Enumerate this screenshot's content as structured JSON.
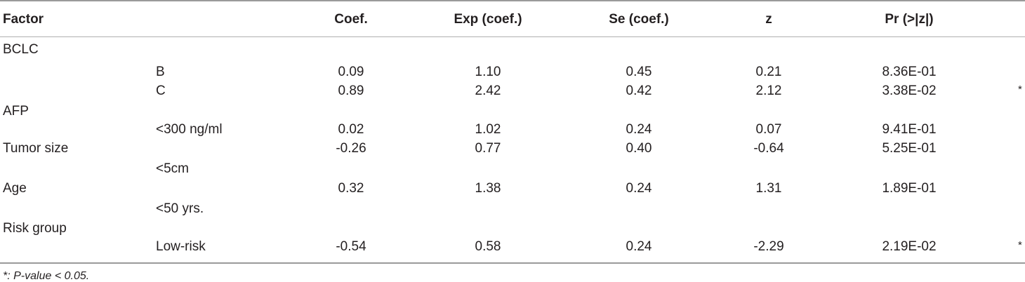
{
  "table": {
    "headers": {
      "factor": "Factor",
      "subfactor": "",
      "coef": "Coef.",
      "exp": "Exp (coef.)",
      "se": "Se (coef.)",
      "z": "z",
      "pr": "Pr (>|z|)"
    },
    "rows": [
      {
        "factor": "BCLC",
        "sub": "",
        "coef": "",
        "exp": "",
        "se": "",
        "z": "",
        "pr": "",
        "sig": ""
      },
      {
        "factor": "",
        "sub": "B",
        "coef": "0.09",
        "exp": "1.10",
        "se": "0.45",
        "z": "0.21",
        "pr": "8.36E-01",
        "sig": ""
      },
      {
        "factor": "",
        "sub": "C",
        "coef": "0.89",
        "exp": "2.42",
        "se": "0.42",
        "z": "2.12",
        "pr": "3.38E-02",
        "sig": "*"
      },
      {
        "factor": "AFP",
        "sub": "",
        "coef": "",
        "exp": "",
        "se": "",
        "z": "",
        "pr": "",
        "sig": ""
      },
      {
        "factor": "",
        "sub": "<300 ng/ml",
        "coef": "0.02",
        "exp": "1.02",
        "se": "0.24",
        "z": "0.07",
        "pr": "9.41E-01",
        "sig": ""
      },
      {
        "factor": "Tumor size",
        "sub": "",
        "coef": "-0.26",
        "exp": "0.77",
        "se": "0.40",
        "z": "-0.64",
        "pr": "5.25E-01",
        "sig": ""
      },
      {
        "factor": "",
        "sub": "<5cm",
        "coef": "",
        "exp": "",
        "se": "",
        "z": "",
        "pr": "",
        "sig": ""
      },
      {
        "factor": "Age",
        "sub": "",
        "coef": "0.32",
        "exp": "1.38",
        "se": "0.24",
        "z": "1.31",
        "pr": "1.89E-01",
        "sig": ""
      },
      {
        "factor": "",
        "sub": "<50 yrs.",
        "coef": "",
        "exp": "",
        "se": "",
        "z": "",
        "pr": "",
        "sig": ""
      },
      {
        "factor": "Risk group",
        "sub": "",
        "coef": "",
        "exp": "",
        "se": "",
        "z": "",
        "pr": "",
        "sig": ""
      },
      {
        "factor": "",
        "sub": "Low-risk",
        "coef": "-0.54",
        "exp": "0.58",
        "se": "0.24",
        "z": "-2.29",
        "pr": "2.19E-02",
        "sig": "*"
      }
    ]
  },
  "footnote": "*: P-value < 0.05."
}
